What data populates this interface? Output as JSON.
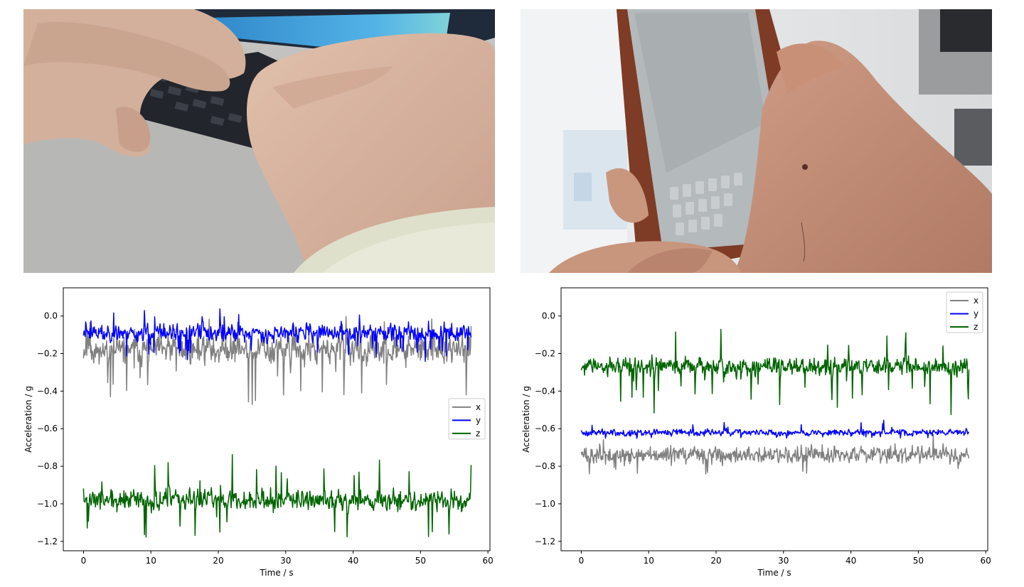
{
  "photos": [
    {
      "name": "laptop-typing-photo",
      "colors": {
        "bg": "#b9b8b6",
        "skin": "#d7b6a2",
        "skin_shadow": "#c49a86",
        "screen": "#3d9bd6",
        "keyboard": "#23262d",
        "sleeve": "#dfe0cc"
      }
    },
    {
      "name": "phone-typing-photo",
      "colors": {
        "bg": "#e9eaec",
        "skin": "#c8957d",
        "skin_shadow": "#a87561",
        "phone_screen": "#b3b8ba",
        "phone_case": "#7e3b25",
        "dark": "#2a2b2e"
      }
    }
  ],
  "chart_data": [
    {
      "type": "line",
      "xlabel": "Time / s",
      "ylabel": "Acceleration / g",
      "xlim": [
        -3,
        60.3
      ],
      "ylim": [
        -1.25,
        0.15
      ],
      "xticks": [
        0,
        10,
        20,
        30,
        40,
        50,
        60
      ],
      "yticks": [
        0.0,
        -0.2,
        -0.4,
        -0.6,
        -0.8,
        -1.0,
        -1.2
      ],
      "xtick_labels": [
        "0",
        "10",
        "20",
        "30",
        "40",
        "50",
        "60"
      ],
      "ytick_labels": [
        "0.0",
        "−0.2",
        "−0.4",
        "−0.6",
        "−0.8",
        "−1.0",
        "−1.2"
      ],
      "legend": {
        "position": "center-right",
        "entries": [
          "x",
          "y",
          "z"
        ]
      },
      "duration": 57.5,
      "series": [
        {
          "name": "x",
          "color": "#808080",
          "mean": -0.18,
          "noise": 0.045,
          "spike_down": 0.28,
          "spike_up": 0.18,
          "seed": 11
        },
        {
          "name": "y",
          "color": "#0000ff",
          "mean": -0.09,
          "noise": 0.028,
          "spike_down": 0.13,
          "spike_up": 0.12,
          "seed": 23
        },
        {
          "name": "z",
          "color": "#006400",
          "mean": -0.98,
          "noise": 0.032,
          "spike_down": 0.19,
          "spike_up": 0.2,
          "seed": 37
        }
      ]
    },
    {
      "type": "line",
      "xlabel": "Time / s",
      "ylabel": "Acceleration / g",
      "xlim": [
        -3,
        60.3
      ],
      "ylim": [
        -1.25,
        0.15
      ],
      "xticks": [
        0,
        10,
        20,
        30,
        40,
        50,
        60
      ],
      "yticks": [
        0.0,
        -0.2,
        -0.4,
        -0.6,
        -0.8,
        -1.0,
        -1.2
      ],
      "xtick_labels": [
        "0",
        "10",
        "20",
        "30",
        "40",
        "50",
        "60"
      ],
      "ytick_labels": [
        "0.0",
        "−0.2",
        "−0.4",
        "−0.6",
        "−0.8",
        "−1.0",
        "−1.2"
      ],
      "legend": {
        "position": "upper-right",
        "entries": [
          "x",
          "y",
          "z"
        ]
      },
      "duration": 57.5,
      "series": [
        {
          "name": "x",
          "color": "#808080",
          "mean": -0.74,
          "noise": 0.025,
          "spike_down": 0.08,
          "spike_up": 0.07,
          "seed": 51
        },
        {
          "name": "y",
          "color": "#0000ff",
          "mean": -0.62,
          "noise": 0.01,
          "spike_down": 0.03,
          "spike_up": 0.05,
          "seed": 63
        },
        {
          "name": "z",
          "color": "#006400",
          "mean": -0.27,
          "noise": 0.028,
          "spike_down": 0.2,
          "spike_up": 0.2,
          "seed": 77
        }
      ]
    }
  ]
}
